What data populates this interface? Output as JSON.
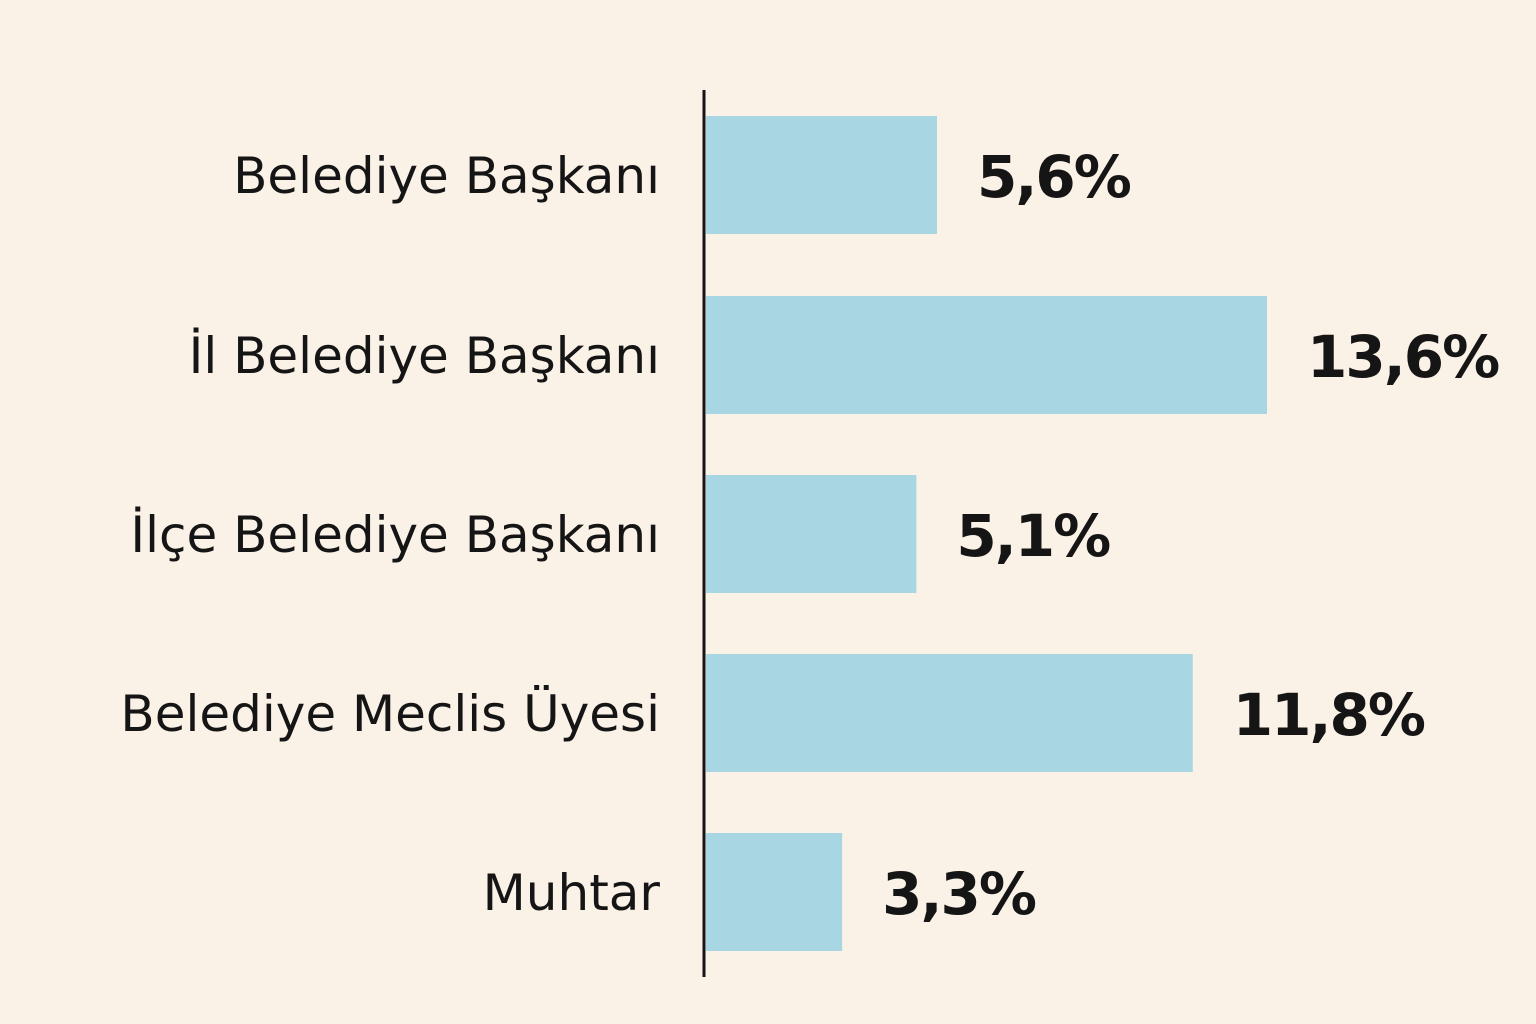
{
  "chart_data": {
    "type": "bar",
    "orientation": "horizontal",
    "categories": [
      "Belediye Başkanı",
      "İl Belediye Başkanı",
      "İlçe Belediye Başkanı",
      "Belediye Meclis Üyesi",
      "Muhtar"
    ],
    "values": [
      5.6,
      13.6,
      5.1,
      11.8,
      3.3
    ],
    "data_labels": [
      "5,6%",
      "13,6%",
      "5,1%",
      "11,8%",
      "3,3%"
    ],
    "unit": "%",
    "title": "",
    "xlabel": "",
    "ylabel": "",
    "grid": false,
    "legend": "none",
    "colors": {
      "bar": "#a8d6e2",
      "background": "#faf1e7",
      "axis": "#151515",
      "text": "#151515"
    }
  }
}
